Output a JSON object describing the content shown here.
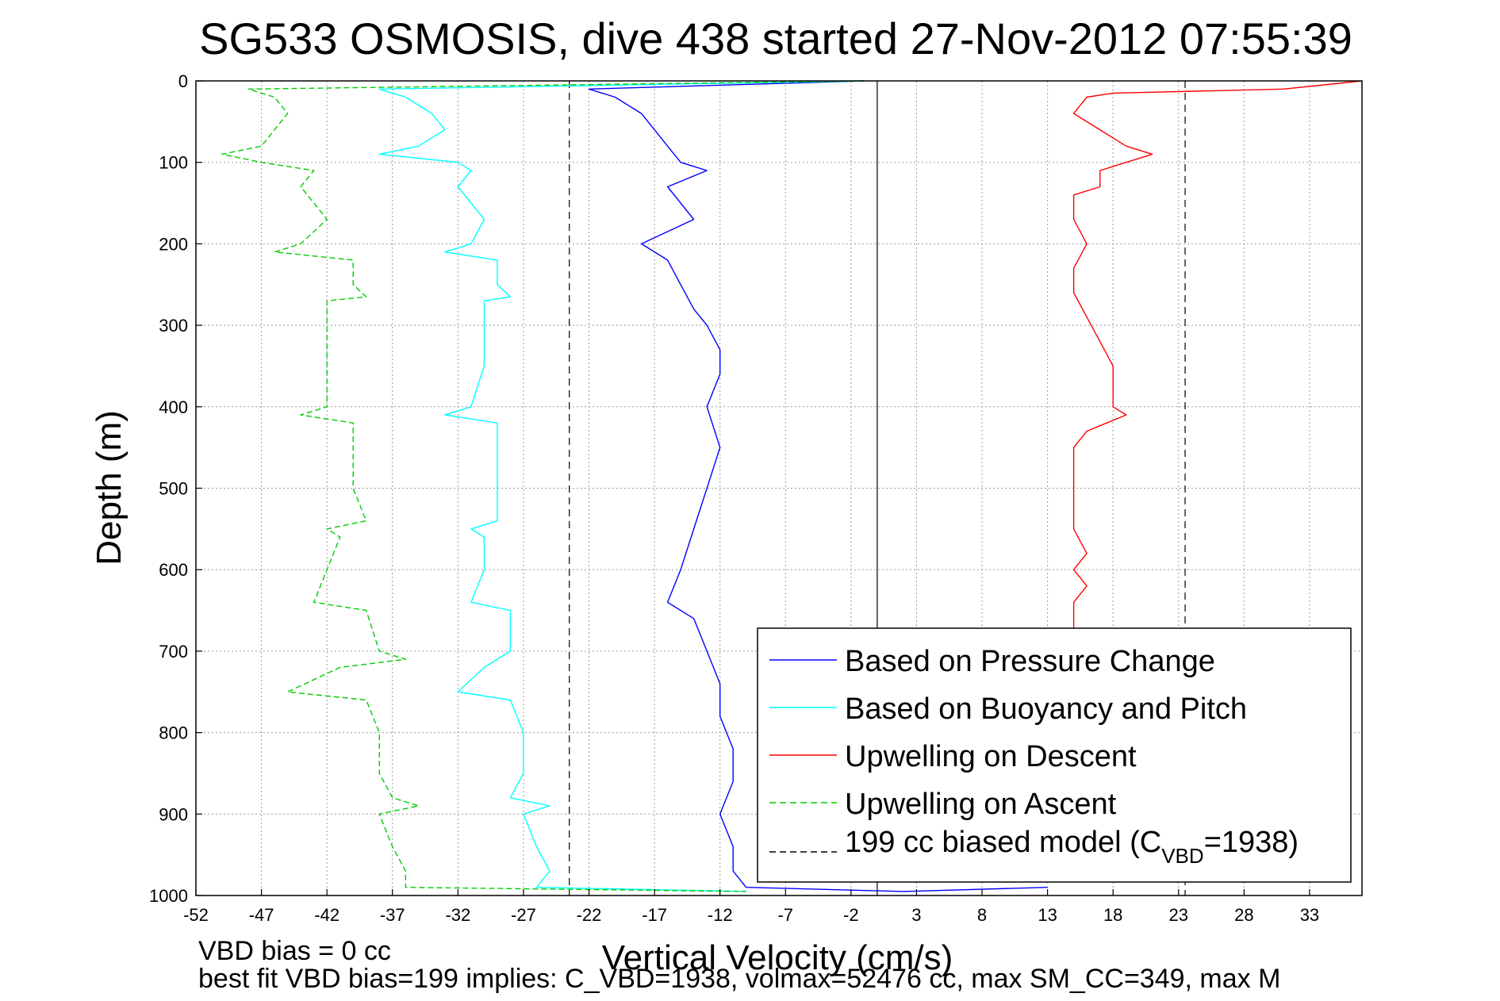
{
  "chart_data": {
    "type": "line",
    "title": "SG533 OSMOSIS, dive 438 started 27-Nov-2012 07:55:39",
    "xlabel": "Vertical Velocity (cm/s)",
    "ylabel": "Depth (m)",
    "xlim": [
      -52,
      37
    ],
    "ylim": [
      0,
      1000
    ],
    "y_reversed": true,
    "grid": true,
    "x_ticks": [
      -52,
      -47,
      -42,
      -37,
      -32,
      -27,
      -22,
      -17,
      -12,
      -7,
      -2,
      3,
      8,
      13,
      18,
      23,
      28,
      33
    ],
    "y_ticks": [
      0,
      100,
      200,
      300,
      400,
      500,
      600,
      700,
      800,
      900,
      1000
    ],
    "legend_position": "bottom-right",
    "reference_lines": {
      "zero_line_x": 0,
      "model_bias_x": [
        -23.5,
        23.5
      ]
    },
    "series": [
      {
        "name": "Based on Pressure Change",
        "color": "#0000ff",
        "style": "solid",
        "points": [
          [
            -1,
            0
          ],
          [
            -22,
            10
          ],
          [
            -20,
            20
          ],
          [
            -18,
            40
          ],
          [
            -17,
            60
          ],
          [
            -16,
            80
          ],
          [
            -15,
            100
          ],
          [
            -13,
            110
          ],
          [
            -16,
            130
          ],
          [
            -15,
            150
          ],
          [
            -14,
            170
          ],
          [
            -18,
            200
          ],
          [
            -16,
            220
          ],
          [
            -15,
            250
          ],
          [
            -14,
            280
          ],
          [
            -13,
            300
          ],
          [
            -12,
            330
          ],
          [
            -12,
            360
          ],
          [
            -13,
            400
          ],
          [
            -12,
            450
          ],
          [
            -13,
            500
          ],
          [
            -14,
            550
          ],
          [
            -15,
            600
          ],
          [
            -16,
            640
          ],
          [
            -14,
            660
          ],
          [
            -13,
            700
          ],
          [
            -12,
            740
          ],
          [
            -12,
            780
          ],
          [
            -11,
            820
          ],
          [
            -11,
            860
          ],
          [
            -12,
            900
          ],
          [
            -11,
            940
          ],
          [
            -11,
            970
          ],
          [
            -10,
            990
          ],
          [
            2,
            995
          ],
          [
            13,
            990
          ]
        ]
      },
      {
        "name": "Based on Buoyancy and Pitch",
        "color": "#00ffff",
        "style": "solid",
        "points": [
          [
            -1,
            0
          ],
          [
            -38,
            10
          ],
          [
            -36,
            20
          ],
          [
            -34,
            40
          ],
          [
            -33,
            60
          ],
          [
            -35,
            80
          ],
          [
            -38,
            90
          ],
          [
            -32,
            100
          ],
          [
            -31,
            110
          ],
          [
            -32,
            130
          ],
          [
            -31,
            150
          ],
          [
            -30,
            170
          ],
          [
            -31,
            200
          ],
          [
            -33,
            210
          ],
          [
            -29,
            220
          ],
          [
            -29,
            250
          ],
          [
            -28,
            265
          ],
          [
            -30,
            270
          ],
          [
            -30,
            300
          ],
          [
            -30,
            350
          ],
          [
            -31,
            400
          ],
          [
            -33,
            410
          ],
          [
            -29,
            420
          ],
          [
            -29,
            450
          ],
          [
            -29,
            500
          ],
          [
            -29,
            540
          ],
          [
            -31,
            550
          ],
          [
            -30,
            560
          ],
          [
            -30,
            600
          ],
          [
            -31,
            640
          ],
          [
            -28,
            650
          ],
          [
            -28,
            700
          ],
          [
            -30,
            720
          ],
          [
            -32,
            750
          ],
          [
            -28,
            760
          ],
          [
            -27,
            800
          ],
          [
            -27,
            850
          ],
          [
            -28,
            880
          ],
          [
            -25,
            890
          ],
          [
            -27,
            900
          ],
          [
            -26,
            940
          ],
          [
            -25,
            970
          ],
          [
            -26,
            990
          ],
          [
            -10,
            995
          ]
        ]
      },
      {
        "name": "Upwelling on Descent",
        "color": "#ff0000",
        "style": "solid",
        "points": [
          [
            37,
            0
          ],
          [
            31,
            10
          ],
          [
            18,
            15
          ],
          [
            16,
            20
          ],
          [
            15,
            40
          ],
          [
            17,
            60
          ],
          [
            19,
            80
          ],
          [
            21,
            90
          ],
          [
            19,
            100
          ],
          [
            17,
            110
          ],
          [
            17,
            130
          ],
          [
            15,
            140
          ],
          [
            15,
            170
          ],
          [
            16,
            200
          ],
          [
            15,
            230
          ],
          [
            15,
            260
          ],
          [
            16,
            290
          ],
          [
            17,
            320
          ],
          [
            18,
            350
          ],
          [
            18,
            370
          ],
          [
            18,
            400
          ],
          [
            19,
            410
          ],
          [
            16,
            430
          ],
          [
            15,
            450
          ],
          [
            15,
            500
          ],
          [
            15,
            550
          ],
          [
            16,
            580
          ],
          [
            15,
            600
          ],
          [
            16,
            620
          ],
          [
            15,
            640
          ],
          [
            15,
            660
          ],
          [
            15,
            680
          ]
        ]
      },
      {
        "name": "Upwelling on Ascent",
        "color": "#00cc00",
        "style": "dashed",
        "points": [
          [
            -1,
            0
          ],
          [
            -48,
            10
          ],
          [
            -46,
            20
          ],
          [
            -45,
            40
          ],
          [
            -46,
            60
          ],
          [
            -47,
            80
          ],
          [
            -50,
            90
          ],
          [
            -47,
            100
          ],
          [
            -43,
            110
          ],
          [
            -44,
            130
          ],
          [
            -43,
            150
          ],
          [
            -42,
            170
          ],
          [
            -44,
            200
          ],
          [
            -46,
            210
          ],
          [
            -40,
            220
          ],
          [
            -40,
            250
          ],
          [
            -39,
            265
          ],
          [
            -42,
            270
          ],
          [
            -42,
            300
          ],
          [
            -42,
            350
          ],
          [
            -42,
            400
          ],
          [
            -44,
            410
          ],
          [
            -40,
            420
          ],
          [
            -40,
            450
          ],
          [
            -40,
            500
          ],
          [
            -39,
            540
          ],
          [
            -42,
            550
          ],
          [
            -41,
            560
          ],
          [
            -42,
            600
          ],
          [
            -43,
            640
          ],
          [
            -39,
            650
          ],
          [
            -38,
            700
          ],
          [
            -36,
            710
          ],
          [
            -41,
            720
          ],
          [
            -45,
            750
          ],
          [
            -39,
            760
          ],
          [
            -38,
            800
          ],
          [
            -38,
            850
          ],
          [
            -37,
            880
          ],
          [
            -35,
            890
          ],
          [
            -38,
            900
          ],
          [
            -37,
            940
          ],
          [
            -36,
            970
          ],
          [
            -36,
            990
          ],
          [
            -10,
            995
          ]
        ]
      },
      {
        "name": "199 cc biased model (C_VBD=1938)",
        "color": "#000000",
        "style": "dashed",
        "points": []
      }
    ],
    "legend": {
      "entries": [
        "Based on Pressure Change",
        "Based on Buoyancy and Pitch",
        "Upwelling on Descent",
        "Upwelling on Ascent"
      ],
      "model_entry": {
        "prefix": "199 cc biased model (C",
        "sub": "VBD",
        "suffix": "=1938)"
      }
    }
  },
  "notes": {
    "line1": "VBD bias = 0 cc",
    "line2": "best fit VBD bias=199 implies: C_VBD=1938, volmax=52476 cc, max SM_CC=349, max M"
  },
  "colors": {
    "pressure": "#0000ff",
    "buoyancy": "#00ffff",
    "descent": "#ff0000",
    "ascent": "#00cc00",
    "model": "#000000"
  }
}
